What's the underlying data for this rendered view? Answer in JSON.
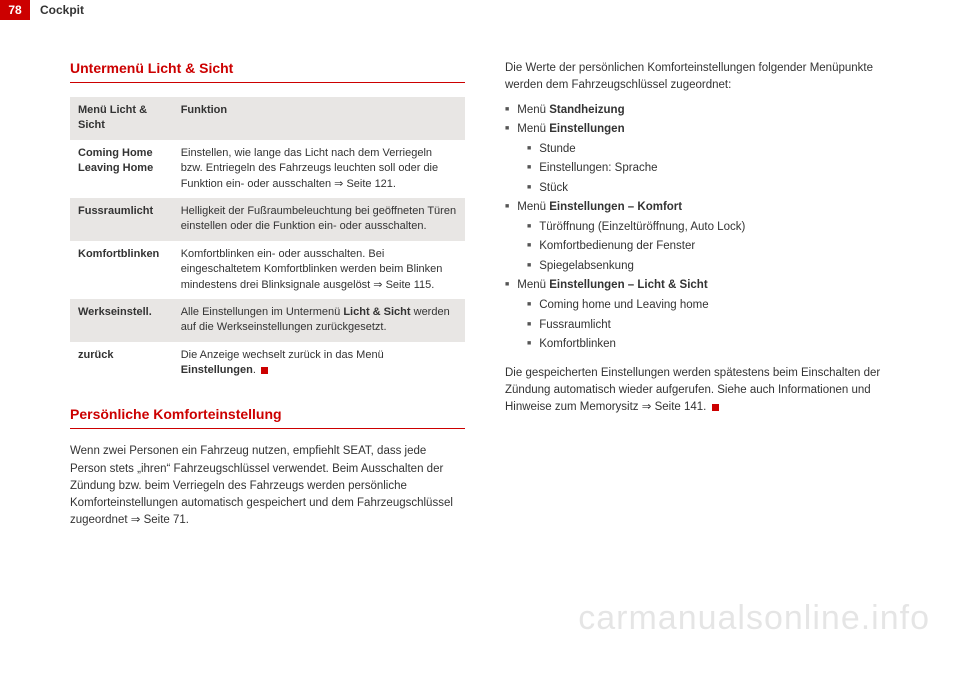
{
  "header": {
    "page": "78",
    "section": "Cockpit"
  },
  "left": {
    "title1": "Untermenü Licht & Sicht",
    "table": {
      "rows": [
        {
          "label": "Menü Licht & Sicht",
          "func": "Funktion",
          "shade": true,
          "boldFunc": true
        },
        {
          "label": "Coming Home Leaving Home",
          "func": "Einstellen, wie lange das Licht nach dem Verriegeln bzw. Entriegeln des Fahrzeugs leuchten soll oder die Funktion ein- oder ausschalten ⇒ Seite 121.",
          "shade": false
        },
        {
          "label": "Fussraumlicht",
          "func": "Helligkeit der Fußraumbeleuchtung bei geöffneten Türen einstellen oder die Funktion ein- oder ausschalten.",
          "shade": true
        },
        {
          "label": "Komfortblinken",
          "func": "Komfortblinken ein- oder ausschalten. Bei eingeschaltetem Komfortblinken werden beim Blinken mindestens drei Blinksignale ausgelöst ⇒ Seite 115.",
          "shade": false
        },
        {
          "label": "Werkseinstell.",
          "func_pre": "Alle Einstellungen im Untermenü ",
          "func_bold": "Licht & Sicht",
          "func_post": " werden auf die Werkseinstellungen zurückgesetzt.",
          "shade": true
        },
        {
          "label": "zurück",
          "func_pre": "Die Anzeige wechselt zurück in das Menü ",
          "func_bold": "Einstellungen",
          "func_post": ".",
          "shade": false,
          "endmark": true
        }
      ]
    },
    "title2": "Persönliche Komforteinstellung",
    "para2": "Wenn zwei Personen ein Fahrzeug nutzen, empfiehlt SEAT, dass jede Person stets „ihren“ Fahrzeugschlüssel verwendet. Beim Ausschalten der Zündung bzw. beim Verriegeln des Fahrzeugs werden persönliche Komforteinstellungen automatisch gespeichert und dem Fahrzeugschlüssel zugeordnet ⇒ Seite 71."
  },
  "right": {
    "intro": "Die Werte der persönlichen Komforteinstellungen folgender Menüpunkte werden dem Fahrzeugschlüssel zugeordnet:",
    "list": [
      {
        "pre": "Menü ",
        "bold": "Standheizung"
      },
      {
        "pre": "Menü ",
        "bold": "Einstellungen",
        "sub": [
          "Stunde",
          "Einstellungen: Sprache",
          "Stück"
        ]
      },
      {
        "pre": "Menü ",
        "bold": "Einstellungen – Komfort",
        "sub": [
          "Türöffnung (Einzeltüröffnung, Auto Lock)",
          "Komfortbedienung der Fenster",
          "Spiegelabsenkung"
        ]
      },
      {
        "pre": "Menü ",
        "bold": "Einstellungen – Licht & Sicht",
        "sub": [
          "Coming home und Leaving home",
          "Fussraumlicht",
          "Komfortblinken"
        ]
      }
    ],
    "outro_pre": "Die gespeicherten Einstellungen werden spätestens beim Einschalten der Zündung automatisch wieder aufgerufen. Siehe auch Informationen und Hinweise zum Memorysitz ⇒ Seite 141."
  },
  "watermark": "carmanualsonline.info"
}
